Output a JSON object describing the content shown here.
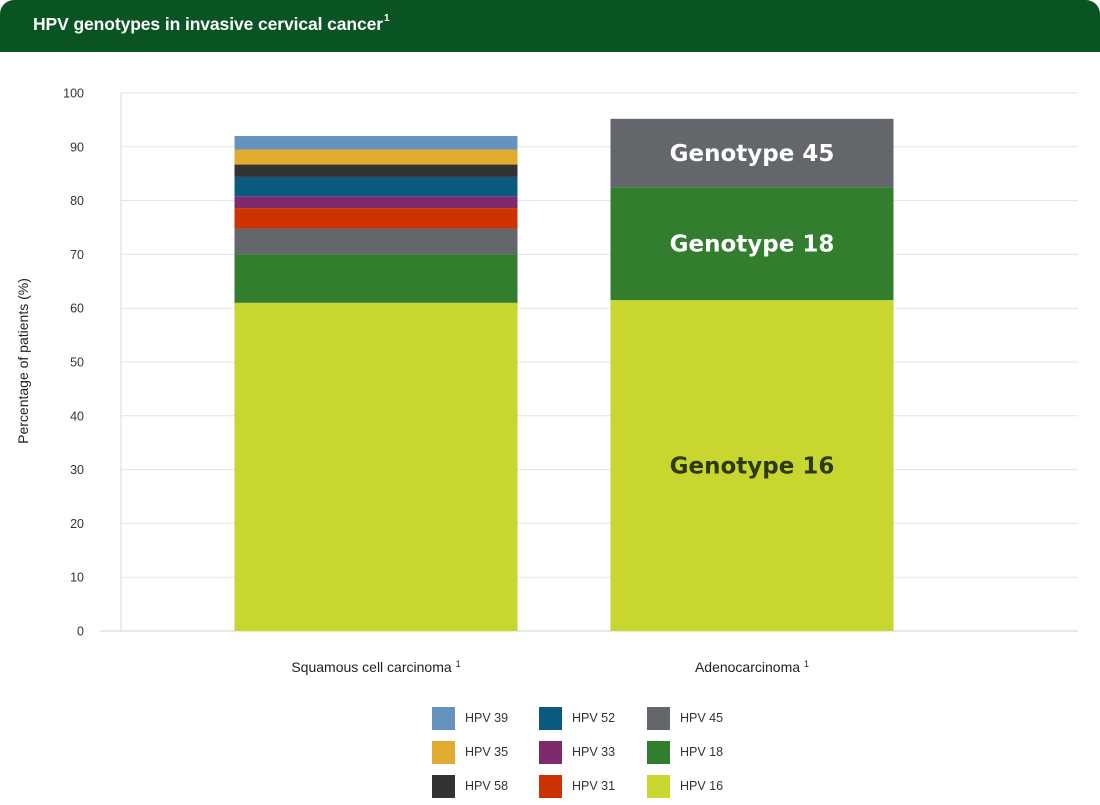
{
  "header": {
    "title": "HPV genotypes in invasive cervical cancer",
    "title_sup": "1"
  },
  "chart_data": {
    "type": "bar",
    "stacked": true,
    "ylabel": "Percentage of patients (%)",
    "ylim": [
      0,
      100
    ],
    "yticks": [
      0,
      10,
      20,
      30,
      40,
      50,
      60,
      70,
      80,
      90,
      100
    ],
    "grid": true,
    "categories": [
      {
        "label": "Squamous cell carcinoma",
        "sup": "1"
      },
      {
        "label": "Adenocarcinoma",
        "sup": "1"
      }
    ],
    "series": [
      {
        "name": "HPV 16",
        "color": "#c8d62f",
        "values": [
          61,
          61.5
        ]
      },
      {
        "name": "HPV 18",
        "color": "#337d2e",
        "values": [
          9,
          21
        ]
      },
      {
        "name": "HPV 45",
        "color": "#63666b",
        "values": [
          4.8,
          12.7
        ]
      },
      {
        "name": "HPV 31",
        "color": "#cc3300",
        "values": [
          3.8,
          0
        ]
      },
      {
        "name": "HPV 33",
        "color": "#7d2a6e",
        "values": [
          2.2,
          0
        ]
      },
      {
        "name": "HPV 52",
        "color": "#0a5a80",
        "values": [
          3.6,
          0
        ]
      },
      {
        "name": "HPV 58",
        "color": "#333333",
        "values": [
          2.3,
          0
        ]
      },
      {
        "name": "HPV 35",
        "color": "#e0ab2e",
        "values": [
          2.8,
          0
        ]
      },
      {
        "name": "HPV 39",
        "color": "#6693bd",
        "values": [
          2.5,
          0
        ]
      }
    ],
    "segment_labels": [
      {
        "category_index": 1,
        "series": "HPV 16",
        "text": "Genotype 16",
        "color": "#2d3a10"
      },
      {
        "category_index": 1,
        "series": "HPV 18",
        "text": "Genotype 18",
        "color": "#ffffff"
      },
      {
        "category_index": 1,
        "series": "HPV 45",
        "text": "Genotype 45",
        "color": "#ffffff"
      }
    ],
    "legend": {
      "placement": "bottom-center",
      "columns": [
        [
          "HPV 39",
          "HPV 35",
          "HPV 58"
        ],
        [
          "HPV 52",
          "HPV 33",
          "HPV 31"
        ],
        [
          "HPV 45",
          "HPV 18",
          "HPV 16"
        ]
      ]
    }
  }
}
